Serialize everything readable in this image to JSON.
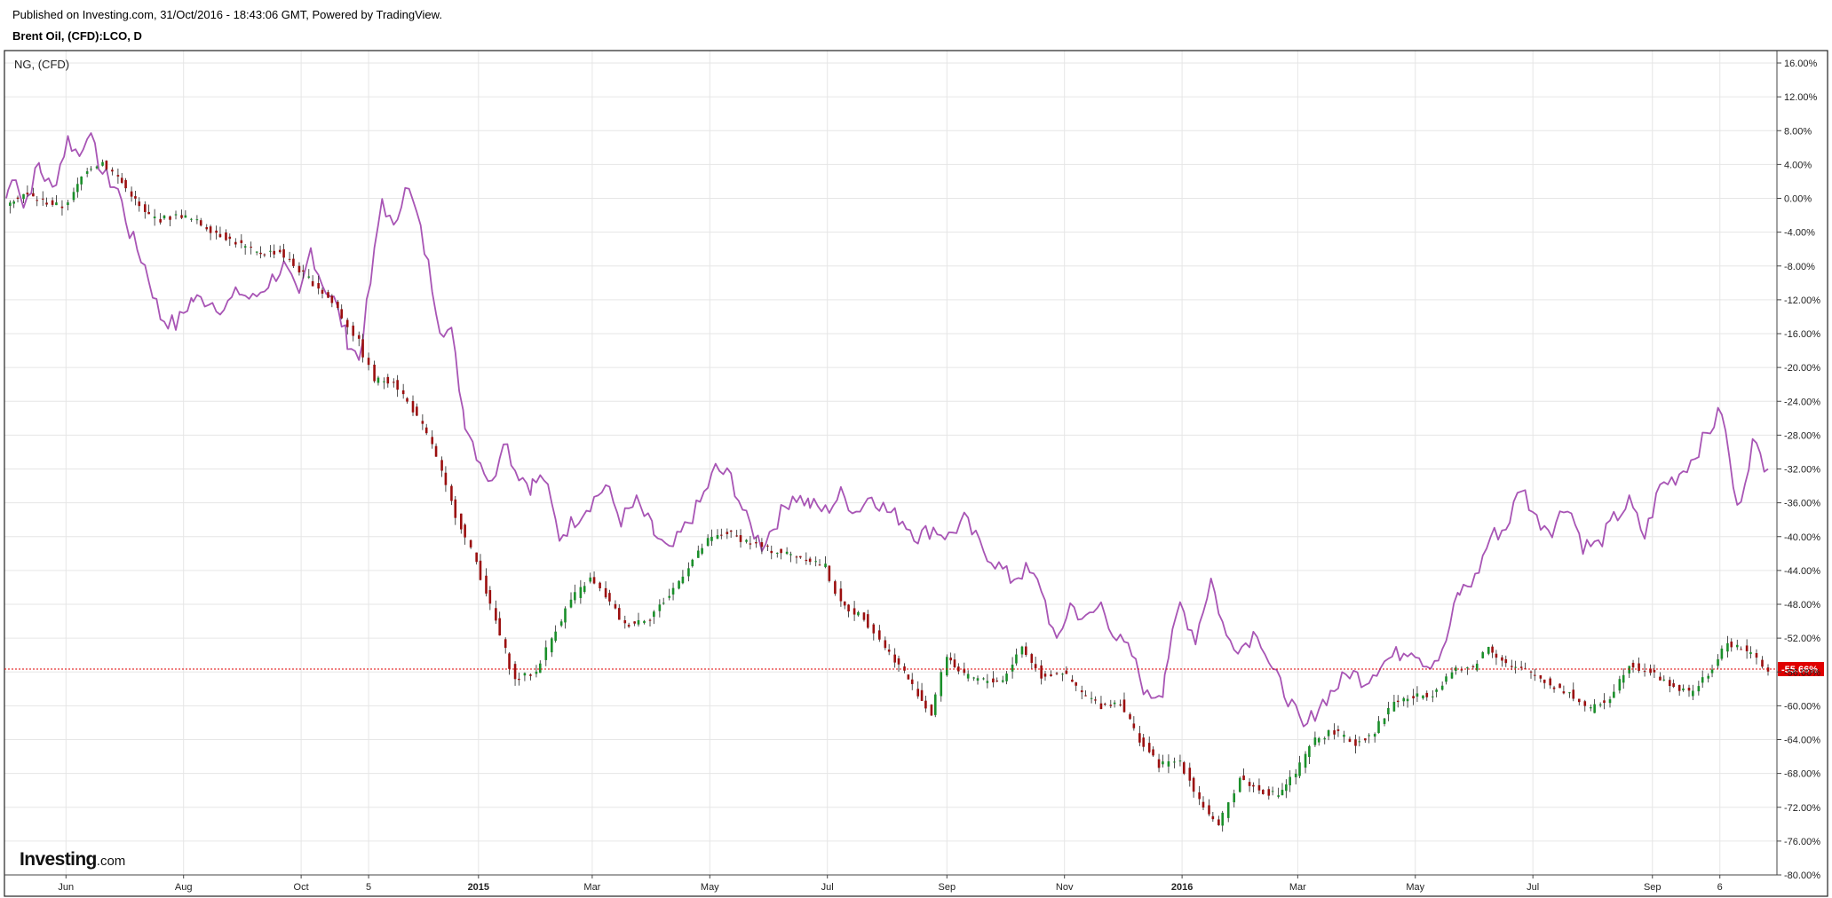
{
  "header": {
    "published_line": "Published on Investing.com, 31/Oct/2016 - 18:43:06 GMT, Powered by TradingView.",
    "symbol_line": "Brent Oil, (CFD):LCO, D"
  },
  "logo": {
    "brand": "Investing",
    "suffix": ".com"
  },
  "chart_data": {
    "type": "line",
    "title": "Brent Oil, (CFD):LCO, D",
    "overlay_label": "NG,  (CFD)",
    "ylabel": "",
    "xlabel": "",
    "y_unit": "%",
    "ylim": [
      -80,
      16
    ],
    "y_ticks": [
      16,
      12,
      8,
      4,
      0,
      -4,
      -8,
      -12,
      -16,
      -20,
      -24,
      -28,
      -32,
      -36,
      -40,
      -44,
      -48,
      -52,
      -56,
      -60,
      -64,
      -68,
      -72,
      -76,
      -80
    ],
    "y_tick_labels": [
      "16.00%",
      "12.00%",
      "8.00%",
      "4.00%",
      "0.00%",
      "-4.00%",
      "-8.00%",
      "-12.00%",
      "-16.00%",
      "-20.00%",
      "-24.00%",
      "-28.00%",
      "-32.00%",
      "-36.00%",
      "-40.00%",
      "-44.00%",
      "-48.00%",
      "-52.00%",
      "-56.00%",
      "-60.00%",
      "-64.00%",
      "-68.00%",
      "-72.00%",
      "-76.00%",
      "-80.00%"
    ],
    "x_range": [
      "2014-05-01",
      "2016-10-31"
    ],
    "x_ticks": [
      {
        "date": "2014-06-01",
        "label": "Jun",
        "bold": false
      },
      {
        "date": "2014-08-01",
        "label": "Aug",
        "bold": false
      },
      {
        "date": "2014-10-01",
        "label": "Oct",
        "bold": false
      },
      {
        "date": "2014-11-05",
        "label": "5",
        "bold": false
      },
      {
        "date": "2015-01-01",
        "label": "2015",
        "bold": true
      },
      {
        "date": "2015-03-01",
        "label": "Mar",
        "bold": false
      },
      {
        "date": "2015-05-01",
        "label": "May",
        "bold": false
      },
      {
        "date": "2015-07-01",
        "label": "Jul",
        "bold": false
      },
      {
        "date": "2015-09-01",
        "label": "Sep",
        "bold": false
      },
      {
        "date": "2015-11-01",
        "label": "Nov",
        "bold": false
      },
      {
        "date": "2016-01-01",
        "label": "2016",
        "bold": true
      },
      {
        "date": "2016-03-01",
        "label": "Mar",
        "bold": false
      },
      {
        "date": "2016-05-01",
        "label": "May",
        "bold": false
      },
      {
        "date": "2016-07-01",
        "label": "Jul",
        "bold": false
      },
      {
        "date": "2016-09-01",
        "label": "Sep",
        "bold": false
      },
      {
        "date": "2016-10-06",
        "label": "6",
        "bold": false
      }
    ],
    "grid": true,
    "last_value": -55.66,
    "last_value_label": "-55.66%",
    "last_value_color": "#e00000",
    "colors": {
      "up": "#1a8f2a",
      "down": "#9b0f0f",
      "overlay": "#a855b5",
      "grid": "#e6e6e6"
    },
    "series": [
      {
        "name": "Brent Oil, (CFD):LCO, D",
        "style": "candles",
        "points": [
          [
            "2014-05-01",
            -0.5
          ],
          [
            "2014-05-10",
            0.5
          ],
          [
            "2014-05-20",
            -0.3
          ],
          [
            "2014-05-30",
            -1.0
          ],
          [
            "2014-06-05",
            0.5
          ],
          [
            "2014-06-12",
            3.5
          ],
          [
            "2014-06-20",
            4.3
          ],
          [
            "2014-06-28",
            2.5
          ],
          [
            "2014-07-05",
            0.5
          ],
          [
            "2014-07-12",
            -1.8
          ],
          [
            "2014-07-20",
            -2.5
          ],
          [
            "2014-07-31",
            -2.0
          ],
          [
            "2014-08-08",
            -2.8
          ],
          [
            "2014-08-18",
            -4.0
          ],
          [
            "2014-08-31",
            -5.5
          ],
          [
            "2014-09-08",
            -6.5
          ],
          [
            "2014-09-20",
            -6.3
          ],
          [
            "2014-09-30",
            -8.5
          ],
          [
            "2014-10-10",
            -10.5
          ],
          [
            "2014-10-20",
            -13.0
          ],
          [
            "2014-10-31",
            -17.0
          ],
          [
            "2014-11-08",
            -21.5
          ],
          [
            "2014-11-18",
            -21.5
          ],
          [
            "2014-11-28",
            -25.0
          ],
          [
            "2014-12-08",
            -29.0
          ],
          [
            "2014-12-18",
            -36.0
          ],
          [
            "2014-12-31",
            -43.0
          ],
          [
            "2015-01-10",
            -50.0
          ],
          [
            "2015-01-20",
            -57.0
          ],
          [
            "2015-01-31",
            -56.0
          ],
          [
            "2015-02-08",
            -52.0
          ],
          [
            "2015-02-18",
            -47.5
          ],
          [
            "2015-02-28",
            -45.0
          ],
          [
            "2015-03-08",
            -47.0
          ],
          [
            "2015-03-18",
            -50.5
          ],
          [
            "2015-03-31",
            -49.5
          ],
          [
            "2015-04-10",
            -47.0
          ],
          [
            "2015-04-20",
            -43.5
          ],
          [
            "2015-04-30",
            -40.5
          ],
          [
            "2015-05-10",
            -39.5
          ],
          [
            "2015-05-20",
            -40.5
          ],
          [
            "2015-05-31",
            -41.5
          ],
          [
            "2015-06-10",
            -42.0
          ],
          [
            "2015-06-20",
            -42.5
          ],
          [
            "2015-06-30",
            -43.5
          ],
          [
            "2015-07-08",
            -48.0
          ],
          [
            "2015-07-20",
            -49.5
          ],
          [
            "2015-07-31",
            -53.0
          ],
          [
            "2015-08-10",
            -56.0
          ],
          [
            "2015-08-24",
            -61.0
          ],
          [
            "2015-09-01",
            -54.0
          ],
          [
            "2015-09-10",
            -56.5
          ],
          [
            "2015-09-20",
            -57.0
          ],
          [
            "2015-09-30",
            -57.0
          ],
          [
            "2015-10-10",
            -53.0
          ],
          [
            "2015-10-20",
            -56.5
          ],
          [
            "2015-10-31",
            -56.0
          ],
          [
            "2015-11-10",
            -58.5
          ],
          [
            "2015-11-20",
            -60.0
          ],
          [
            "2015-11-30",
            -59.5
          ],
          [
            "2015-12-10",
            -64.0
          ],
          [
            "2015-12-20",
            -67.0
          ],
          [
            "2015-12-31",
            -66.5
          ],
          [
            "2016-01-10",
            -71.0
          ],
          [
            "2016-01-20",
            -74.5
          ],
          [
            "2016-01-31",
            -68.5
          ],
          [
            "2016-02-10",
            -70.0
          ],
          [
            "2016-02-20",
            -70.5
          ],
          [
            "2016-02-29",
            -68.0
          ],
          [
            "2016-03-10",
            -64.0
          ],
          [
            "2016-03-20",
            -63.0
          ],
          [
            "2016-03-31",
            -64.5
          ],
          [
            "2016-04-10",
            -63.0
          ],
          [
            "2016-04-20",
            -59.5
          ],
          [
            "2016-04-30",
            -59.0
          ],
          [
            "2016-05-10",
            -58.5
          ],
          [
            "2016-05-20",
            -56.0
          ],
          [
            "2016-05-31",
            -55.5
          ],
          [
            "2016-06-08",
            -53.0
          ],
          [
            "2016-06-20",
            -55.5
          ],
          [
            "2016-06-30",
            -56.0
          ],
          [
            "2016-07-10",
            -57.5
          ],
          [
            "2016-07-20",
            -58.5
          ],
          [
            "2016-07-31",
            -60.5
          ],
          [
            "2016-08-10",
            -59.0
          ],
          [
            "2016-08-20",
            -55.0
          ],
          [
            "2016-08-31",
            -56.0
          ],
          [
            "2016-09-10",
            -57.5
          ],
          [
            "2016-09-20",
            -58.5
          ],
          [
            "2016-09-30",
            -56.5
          ],
          [
            "2016-10-10",
            -52.5
          ],
          [
            "2016-10-20",
            -53.5
          ],
          [
            "2016-10-31",
            -55.66
          ]
        ]
      },
      {
        "name": "NG,  (CFD)",
        "style": "line",
        "points": [
          [
            "2014-05-01",
            0
          ],
          [
            "2014-05-06",
            3
          ],
          [
            "2014-05-10",
            -1
          ],
          [
            "2014-05-18",
            4
          ],
          [
            "2014-05-25",
            1
          ],
          [
            "2014-06-02",
            7
          ],
          [
            "2014-06-08",
            5
          ],
          [
            "2014-06-12",
            8
          ],
          [
            "2014-06-20",
            3
          ],
          [
            "2014-06-28",
            1
          ],
          [
            "2014-07-04",
            -4
          ],
          [
            "2014-07-12",
            -8
          ],
          [
            "2014-07-20",
            -14
          ],
          [
            "2014-07-28",
            -15
          ],
          [
            "2014-08-05",
            -12
          ],
          [
            "2014-08-14",
            -12
          ],
          [
            "2014-08-22",
            -13
          ],
          [
            "2014-08-30",
            -11
          ],
          [
            "2014-09-06",
            -12
          ],
          [
            "2014-09-14",
            -10
          ],
          [
            "2014-09-22",
            -8
          ],
          [
            "2014-09-30",
            -12
          ],
          [
            "2014-10-06",
            -6
          ],
          [
            "2014-10-12",
            -10
          ],
          [
            "2014-10-18",
            -12
          ],
          [
            "2014-10-24",
            -16
          ],
          [
            "2014-10-31",
            -19
          ],
          [
            "2014-11-06",
            -10
          ],
          [
            "2014-11-12",
            0
          ],
          [
            "2014-11-18",
            -4
          ],
          [
            "2014-11-24",
            2
          ],
          [
            "2014-11-30",
            -2
          ],
          [
            "2014-12-06",
            -8
          ],
          [
            "2014-12-12",
            -15
          ],
          [
            "2014-12-18",
            -16
          ],
          [
            "2014-12-24",
            -25
          ],
          [
            "2014-12-31",
            -30
          ],
          [
            "2015-01-08",
            -34
          ],
          [
            "2015-01-14",
            -28
          ],
          [
            "2015-01-20",
            -32
          ],
          [
            "2015-01-28",
            -34
          ],
          [
            "2015-02-04",
            -33
          ],
          [
            "2015-02-12",
            -40
          ],
          [
            "2015-02-20",
            -38
          ],
          [
            "2015-02-28",
            -36
          ],
          [
            "2015-03-08",
            -34
          ],
          [
            "2015-03-16",
            -38
          ],
          [
            "2015-03-24",
            -36
          ],
          [
            "2015-04-01",
            -39
          ],
          [
            "2015-04-10",
            -42
          ],
          [
            "2015-04-18",
            -39
          ],
          [
            "2015-04-26",
            -36
          ],
          [
            "2015-05-04",
            -32
          ],
          [
            "2015-05-12",
            -33
          ],
          [
            "2015-05-20",
            -38
          ],
          [
            "2015-05-28",
            -41
          ],
          [
            "2015-06-05",
            -38
          ],
          [
            "2015-06-13",
            -35
          ],
          [
            "2015-06-21",
            -36
          ],
          [
            "2015-06-30",
            -37
          ],
          [
            "2015-07-08",
            -35
          ],
          [
            "2015-07-16",
            -37
          ],
          [
            "2015-07-24",
            -35
          ],
          [
            "2015-08-01",
            -37
          ],
          [
            "2015-08-09",
            -38
          ],
          [
            "2015-08-17",
            -40
          ],
          [
            "2015-08-25",
            -39
          ],
          [
            "2015-09-02",
            -40
          ],
          [
            "2015-09-10",
            -38
          ],
          [
            "2015-09-18",
            -41
          ],
          [
            "2015-09-26",
            -43
          ],
          [
            "2015-10-04",
            -45
          ],
          [
            "2015-10-12",
            -44
          ],
          [
            "2015-10-20",
            -46
          ],
          [
            "2015-10-28",
            -53
          ],
          [
            "2015-11-04",
            -48
          ],
          [
            "2015-11-12",
            -50
          ],
          [
            "2015-11-20",
            -48
          ],
          [
            "2015-11-28",
            -52
          ],
          [
            "2015-12-06",
            -54
          ],
          [
            "2015-12-14",
            -59
          ],
          [
            "2015-12-22",
            -58
          ],
          [
            "2015-12-31",
            -48
          ],
          [
            "2016-01-08",
            -52
          ],
          [
            "2016-01-16",
            -45
          ],
          [
            "2016-01-24",
            -52
          ],
          [
            "2016-02-01",
            -53
          ],
          [
            "2016-02-09",
            -51
          ],
          [
            "2016-02-17",
            -56
          ],
          [
            "2016-02-25",
            -59
          ],
          [
            "2016-03-04",
            -63
          ],
          [
            "2016-03-12",
            -60
          ],
          [
            "2016-03-20",
            -58
          ],
          [
            "2016-03-28",
            -56
          ],
          [
            "2016-04-05",
            -57
          ],
          [
            "2016-04-13",
            -55
          ],
          [
            "2016-04-21",
            -54
          ],
          [
            "2016-04-29",
            -53
          ],
          [
            "2016-05-07",
            -55
          ],
          [
            "2016-05-15",
            -54
          ],
          [
            "2016-05-23",
            -47
          ],
          [
            "2016-06-01",
            -45
          ],
          [
            "2016-06-09",
            -40
          ],
          [
            "2016-06-17",
            -39
          ],
          [
            "2016-06-25",
            -34
          ],
          [
            "2016-07-03",
            -38
          ],
          [
            "2016-07-11",
            -39
          ],
          [
            "2016-07-19",
            -36
          ],
          [
            "2016-07-27",
            -41
          ],
          [
            "2016-08-04",
            -41
          ],
          [
            "2016-08-12",
            -38
          ],
          [
            "2016-08-20",
            -36
          ],
          [
            "2016-08-28",
            -40
          ],
          [
            "2016-09-05",
            -34
          ],
          [
            "2016-09-13",
            -33
          ],
          [
            "2016-09-21",
            -31
          ],
          [
            "2016-09-29",
            -28
          ],
          [
            "2016-10-07",
            -25
          ],
          [
            "2016-10-15",
            -37
          ],
          [
            "2016-10-23",
            -29
          ],
          [
            "2016-10-31",
            -32
          ]
        ]
      }
    ]
  }
}
